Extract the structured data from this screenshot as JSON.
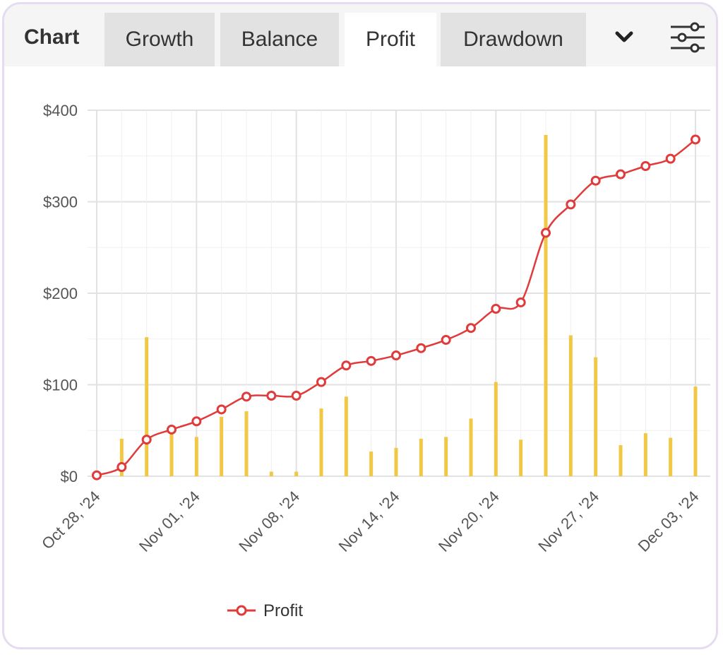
{
  "header": {
    "title": "Chart",
    "tabs": [
      {
        "label": "Growth",
        "active": false
      },
      {
        "label": "Balance",
        "active": false
      },
      {
        "label": "Profit",
        "active": true
      },
      {
        "label": "Drawdown",
        "active": false
      }
    ],
    "more_icon": "chevron-down-icon",
    "filter_icon": "sliders-icon"
  },
  "colors": {
    "line": "#e03a3a",
    "bars": "#f2c744",
    "grid": "#e6e6e6",
    "text": "#555555"
  },
  "chart_data": {
    "type": "line",
    "y_ticks": [
      "$0",
      "$100",
      "$200",
      "$300",
      "$400"
    ],
    "ylim": [
      0,
      400
    ],
    "x_tick_labels": [
      "Oct 28, '24",
      "Nov 01, '24",
      "Nov 08, '24",
      "Nov 14, '24",
      "Nov 20, '24",
      "Nov 27, '24",
      "Dec 03, '24"
    ],
    "legend": [
      "Profit"
    ],
    "legend_position": "bottom",
    "grid": true,
    "series": [
      {
        "name": "Profit",
        "type": "line",
        "values": [
          1,
          10,
          40,
          51,
          60,
          73,
          87,
          88,
          88,
          103,
          121,
          126,
          132,
          140,
          149,
          162,
          183,
          190,
          266,
          297,
          323,
          330,
          339,
          347,
          368
        ]
      },
      {
        "type": "bar",
        "values": [
          0,
          41,
          152,
          48,
          43,
          65,
          71,
          5,
          5,
          74,
          87,
          27,
          31,
          41,
          43,
          63,
          103,
          40,
          373,
          154,
          130,
          34,
          47,
          42,
          98
        ]
      }
    ]
  }
}
